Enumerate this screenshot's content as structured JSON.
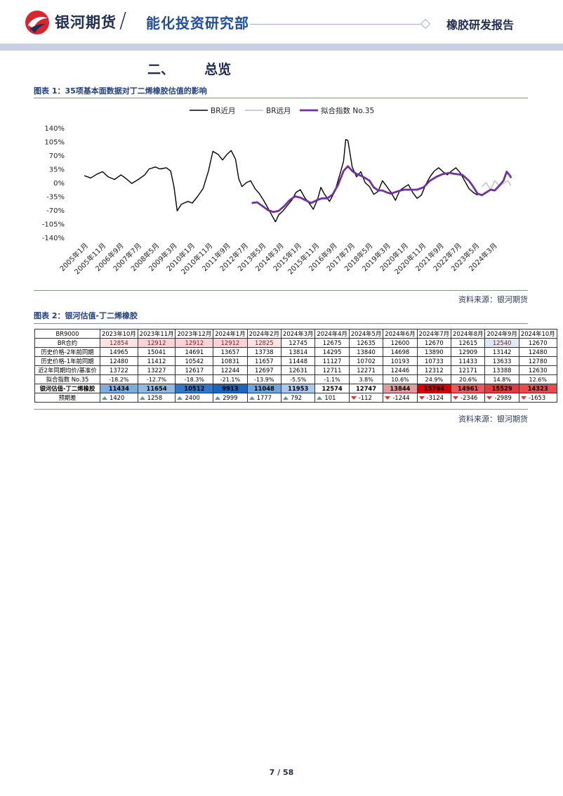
{
  "header": {
    "brand": "银河期货",
    "department": "能化投资研究部",
    "report_type": "橡胶研发报告",
    "colors": {
      "navy": "#1f2d56",
      "red": "#d7262d",
      "band": "#c9d0e0"
    }
  },
  "section": {
    "number": "二、",
    "title": "总览"
  },
  "figure1": {
    "title": "图表 1：35项基本面数据对丁二烯橡胶估值的影响",
    "source": "资料来源：银河期货"
  },
  "figure2": {
    "title": "图表 2：银河估值-丁二烯橡胶",
    "source": "资料来源：银河期货"
  },
  "chart_data": {
    "type": "line",
    "title": "35项基本面数据对丁二烯橡胶估值的影响",
    "legend": [
      "BR近月",
      "BR远月",
      "拟合指数 No.35"
    ],
    "legend_position": "top-center",
    "ylim": [
      -140,
      140
    ],
    "yticks": [
      "140%",
      "105%",
      "70%",
      "35%",
      "0%",
      "-35%",
      "-70%",
      "-105%",
      "-140%"
    ],
    "xticks": [
      "2005年1月",
      "2005年11月",
      "2006年9月",
      "2007年7月",
      "2008年5月",
      "2009年3月",
      "2010年1月",
      "2010年11月",
      "2011年9月",
      "2012年7月",
      "2013年5月",
      "2014年3月",
      "2015年1月",
      "2015年11月",
      "2016年9月",
      "2017年7月",
      "2018年5月",
      "2019年3月",
      "2020年1月",
      "2020年11月",
      "2021年9月",
      "2022年7月",
      "2023年5月",
      "2024年3月"
    ],
    "x_range": [
      2005.0,
      2024.75
    ],
    "colors": {
      "near": "#000000",
      "far": "#bdbdbd",
      "fit": "#7030a0"
    },
    "series": [
      {
        "name": "BR近月",
        "points": [
          [
            2005.0,
            18
          ],
          [
            2005.3,
            12
          ],
          [
            2005.6,
            22
          ],
          [
            2005.85,
            28
          ],
          [
            2006.1,
            15
          ],
          [
            2006.4,
            8
          ],
          [
            2006.7,
            20
          ],
          [
            2006.9,
            12
          ],
          [
            2007.2,
            -2
          ],
          [
            2007.5,
            8
          ],
          [
            2007.8,
            20
          ],
          [
            2008.0,
            35
          ],
          [
            2008.3,
            40
          ],
          [
            2008.5,
            35
          ],
          [
            2008.8,
            38
          ],
          [
            2009.0,
            30
          ],
          [
            2009.15,
            -10
          ],
          [
            2009.3,
            -72
          ],
          [
            2009.5,
            -55
          ],
          [
            2009.8,
            -48
          ],
          [
            2010.0,
            -52
          ],
          [
            2010.25,
            -35
          ],
          [
            2010.5,
            -15
          ],
          [
            2010.75,
            30
          ],
          [
            2010.95,
            80
          ],
          [
            2011.2,
            72
          ],
          [
            2011.4,
            58
          ],
          [
            2011.6,
            72
          ],
          [
            2011.8,
            82
          ],
          [
            2012.0,
            60
          ],
          [
            2012.15,
            10
          ],
          [
            2012.3,
            -10
          ],
          [
            2012.5,
            0
          ],
          [
            2012.7,
            5
          ],
          [
            2012.9,
            -15
          ],
          [
            2013.1,
            -28
          ],
          [
            2013.3,
            -45
          ],
          [
            2013.5,
            -65
          ],
          [
            2013.7,
            -85
          ],
          [
            2013.85,
            -100
          ],
          [
            2014.0,
            -82
          ],
          [
            2014.2,
            -72
          ],
          [
            2014.4,
            -58
          ],
          [
            2014.6,
            -45
          ],
          [
            2014.8,
            -25
          ],
          [
            2015.0,
            -18
          ],
          [
            2015.2,
            -38
          ],
          [
            2015.4,
            -52
          ],
          [
            2015.6,
            -68
          ],
          [
            2015.8,
            -42
          ],
          [
            2015.95,
            -12
          ],
          [
            2016.1,
            -28
          ],
          [
            2016.35,
            -48
          ],
          [
            2016.6,
            -22
          ],
          [
            2016.85,
            25
          ],
          [
            2017.0,
            55
          ],
          [
            2017.1,
            110
          ],
          [
            2017.2,
            108
          ],
          [
            2017.4,
            40
          ],
          [
            2017.6,
            15
          ],
          [
            2017.8,
            28
          ],
          [
            2018.0,
            0
          ],
          [
            2018.2,
            -10
          ],
          [
            2018.4,
            -30
          ],
          [
            2018.6,
            -22
          ],
          [
            2018.8,
            5
          ],
          [
            2019.0,
            -10
          ],
          [
            2019.2,
            -25
          ],
          [
            2019.4,
            -45
          ],
          [
            2019.6,
            -20
          ],
          [
            2019.8,
            -12
          ],
          [
            2020.0,
            -5
          ],
          [
            2020.2,
            -25
          ],
          [
            2020.4,
            -40
          ],
          [
            2020.6,
            -32
          ],
          [
            2020.8,
            -5
          ],
          [
            2021.0,
            15
          ],
          [
            2021.2,
            30
          ],
          [
            2021.4,
            38
          ],
          [
            2021.6,
            28
          ],
          [
            2021.8,
            20
          ],
          [
            2022.0,
            30
          ],
          [
            2022.2,
            38
          ],
          [
            2022.4,
            25
          ],
          [
            2022.6,
            5
          ],
          [
            2022.8,
            -15
          ],
          [
            2023.0,
            -25
          ],
          [
            2023.2,
            -32
          ]
        ]
      },
      {
        "name": "BR远月",
        "points": [
          [
            2023.4,
            -10
          ],
          [
            2023.6,
            0
          ],
          [
            2023.8,
            -18
          ],
          [
            2024.0,
            5
          ],
          [
            2024.2,
            -8
          ],
          [
            2024.4,
            -2
          ],
          [
            2024.6,
            5
          ],
          [
            2024.75,
            -8
          ]
        ]
      },
      {
        "name": "拟合指数 No.35",
        "points": [
          [
            2012.75,
            -52
          ],
          [
            2013.0,
            -50
          ],
          [
            2013.25,
            -60
          ],
          [
            2013.5,
            -70
          ],
          [
            2013.75,
            -75
          ],
          [
            2014.0,
            -72
          ],
          [
            2014.25,
            -60
          ],
          [
            2014.5,
            -45
          ],
          [
            2014.75,
            -35
          ],
          [
            2015.0,
            -38
          ],
          [
            2015.25,
            -45
          ],
          [
            2015.5,
            -52
          ],
          [
            2015.75,
            -45
          ],
          [
            2016.0,
            -40
          ],
          [
            2016.25,
            -40
          ],
          [
            2016.5,
            -30
          ],
          [
            2016.75,
            -5
          ],
          [
            2017.0,
            30
          ],
          [
            2017.2,
            42
          ],
          [
            2017.4,
            30
          ],
          [
            2017.6,
            22
          ],
          [
            2017.8,
            18
          ],
          [
            2018.0,
            12
          ],
          [
            2018.2,
            5
          ],
          [
            2018.4,
            -12
          ],
          [
            2018.6,
            -20
          ],
          [
            2018.8,
            -20
          ],
          [
            2019.0,
            -25
          ],
          [
            2019.2,
            -28
          ],
          [
            2019.5,
            -22
          ],
          [
            2019.8,
            -18
          ],
          [
            2020.1,
            -18
          ],
          [
            2020.4,
            -18
          ],
          [
            2020.7,
            -12
          ],
          [
            2021.0,
            5
          ],
          [
            2021.3,
            15
          ],
          [
            2021.6,
            22
          ],
          [
            2021.9,
            25
          ],
          [
            2022.2,
            22
          ],
          [
            2022.5,
            20
          ],
          [
            2022.8,
            5
          ],
          [
            2023.0,
            -10
          ],
          [
            2023.2,
            -28
          ],
          [
            2023.4,
            -32
          ],
          [
            2023.6,
            -25
          ],
          [
            2023.8,
            -18
          ],
          [
            2024.0,
            -20
          ],
          [
            2024.2,
            -8
          ],
          [
            2024.4,
            5
          ],
          [
            2024.55,
            28
          ],
          [
            2024.7,
            18
          ],
          [
            2024.75,
            12
          ]
        ]
      }
    ]
  },
  "table": {
    "corner": "BR9000",
    "months": [
      "2023年10月",
      "2023年11月",
      "2023年12月",
      "2024年1月",
      "2024年2月",
      "2024年3月",
      "2024年4月",
      "2024年5月",
      "2024年6月",
      "2024年7月",
      "2024年8月",
      "2024年9月",
      "2024年10月"
    ],
    "rows": [
      {
        "label": "BR合约",
        "values": [
          "12854",
          "12912",
          "12912",
          "12912",
          "12825",
          "12745",
          "12675",
          "12635",
          "12600",
          "12670",
          "12615",
          "12540",
          "12670"
        ]
      },
      {
        "label": "历史价格-2年前同期",
        "values": [
          "14965",
          "15041",
          "14691",
          "13657",
          "13738",
          "13814",
          "14295",
          "13840",
          "14698",
          "13890",
          "12909",
          "13142",
          "12480"
        ]
      },
      {
        "label": "历史价格-1年前同期",
        "values": [
          "12480",
          "11412",
          "10542",
          "10831",
          "11657",
          "11448",
          "11127",
          "10702",
          "10193",
          "10733",
          "11433",
          "13633",
          "12780"
        ]
      },
      {
        "label": "近2年同期均价/基准价",
        "values": [
          "13722",
          "13227",
          "12617",
          "12244",
          "12697",
          "12631",
          "12711",
          "12271",
          "12446",
          "12312",
          "12171",
          "13388",
          "12630"
        ]
      },
      {
        "label": "拟合指数 No.35",
        "values": [
          "-18.2%",
          "-12.7%",
          "-18.3%",
          "-21.1%",
          "-13.9%",
          "-5.5%",
          "-1.1%",
          "3.8%",
          "10.6%",
          "24.9%",
          "20.6%",
          "14.8%",
          "12.6%"
        ]
      },
      {
        "label": "银河估值-丁二烯橡胶",
        "values": [
          "11434",
          "11654",
          "10512",
          "9913",
          "11048",
          "11953",
          "12574",
          "12747",
          "13844",
          "15794",
          "14961",
          "15529",
          "14323"
        ]
      },
      {
        "label": "预期差",
        "values": [
          "1420",
          "1258",
          "2400",
          "2999",
          "1777",
          "792",
          "101",
          "-112",
          "-1244",
          "-3124",
          "-2346",
          "-2989",
          "-1653"
        ]
      }
    ],
    "contract_bg": [
      "#fbe3e5",
      "#f8d3d7",
      "#f8d3d7",
      "#f8d3d7",
      "#fbe3e5",
      "#ffffff",
      "#ffffff",
      "#ffffff",
      "#ffffff",
      "#ffffff",
      "#ffffff",
      "#dfe9f6",
      "#ffffff"
    ],
    "valuation_bg": [
      "#7aaee0",
      "#8dbbe5",
      "#2f78c6",
      "#1a66b8",
      "#6aa6dc",
      "#a8c9ec",
      "#ffffff",
      "#ffffff",
      "#e39a9e",
      "#d50000",
      "#e8585c",
      "#e23a3e",
      "#e44c50"
    ],
    "up_color": "#5d9b80",
    "down_color": "#cc3c2e"
  },
  "footer": {
    "page": "7",
    "separator": "/",
    "total": "58"
  }
}
